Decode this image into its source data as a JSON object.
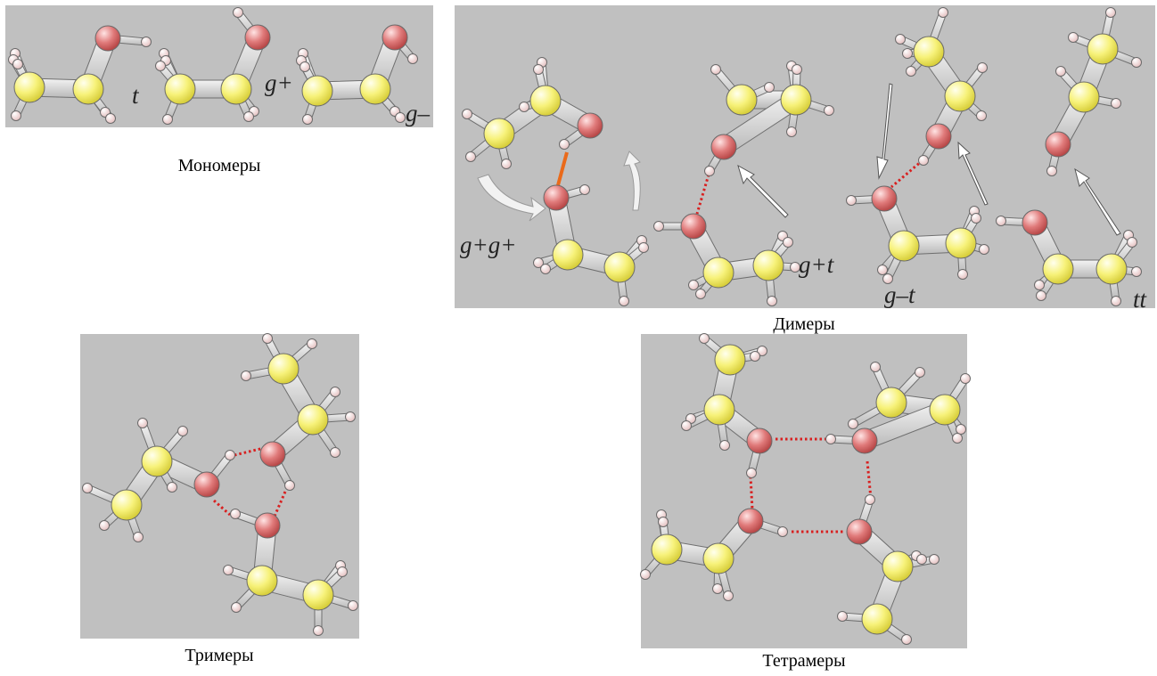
{
  "figure": {
    "monomers": {
      "caption": "Мономеры",
      "labels": [
        "t",
        "g+",
        "g–"
      ]
    },
    "dimers": {
      "caption": "Димеры",
      "labels": [
        "g+g+",
        "g+t",
        "g–t",
        "tt"
      ]
    },
    "trimers": {
      "caption": "Тримеры"
    },
    "tetramers": {
      "caption": "Тетрамеры"
    }
  },
  "colors": {
    "panel": "#c0c0c0",
    "carbon": "#f7f27a",
    "oxygen": "#e07a7a",
    "hydrogen": "#f4dede",
    "hbond": "#d82020",
    "hbond_orange": "#ea6a1a"
  }
}
